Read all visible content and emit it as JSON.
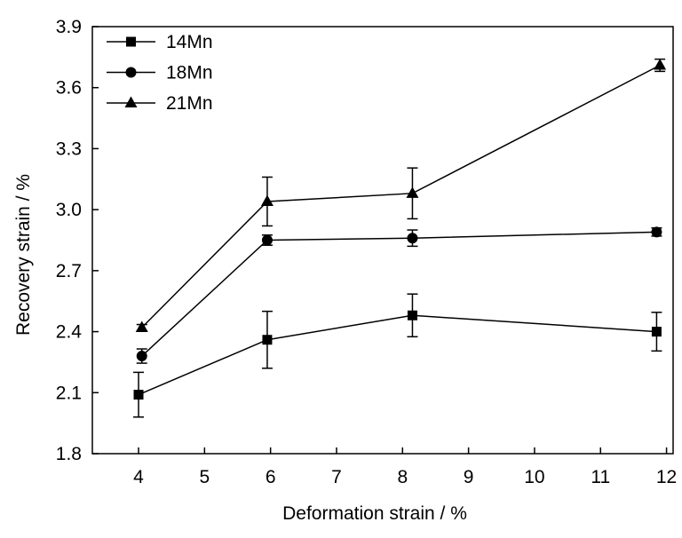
{
  "chart_data": {
    "type": "line",
    "xlabel": "Deformation strain / %",
    "ylabel": "Recovery strain / %",
    "xlim": [
      3.3,
      12.1
    ],
    "ylim": [
      1.8,
      3.9
    ],
    "x_ticks": [
      "4",
      "5",
      "6",
      "7",
      "8",
      "9",
      "10",
      "11",
      "12"
    ],
    "y_ticks": [
      "1.8",
      "2.1",
      "2.4",
      "2.7",
      "3.0",
      "3.3",
      "3.6",
      "3.9"
    ],
    "grid": false,
    "legend_position": "top-left",
    "series": [
      {
        "name": "14Mn",
        "marker": "square",
        "x": [
          4.0,
          5.95,
          8.15,
          11.85
        ],
        "y": [
          2.09,
          2.36,
          2.48,
          2.4
        ],
        "error": [
          0.11,
          0.14,
          0.105,
          0.095
        ]
      },
      {
        "name": "18Mn",
        "marker": "circle",
        "x": [
          4.05,
          5.95,
          8.15,
          11.85
        ],
        "y": [
          2.28,
          2.85,
          2.86,
          2.89
        ],
        "error": [
          0.035,
          0.025,
          0.04,
          0.02
        ]
      },
      {
        "name": "21Mn",
        "marker": "triangle",
        "x": [
          4.05,
          5.95,
          8.15,
          11.9
        ],
        "y": [
          2.42,
          3.04,
          3.08,
          3.71
        ],
        "error": [
          0.015,
          0.12,
          0.125,
          0.03
        ]
      }
    ]
  }
}
